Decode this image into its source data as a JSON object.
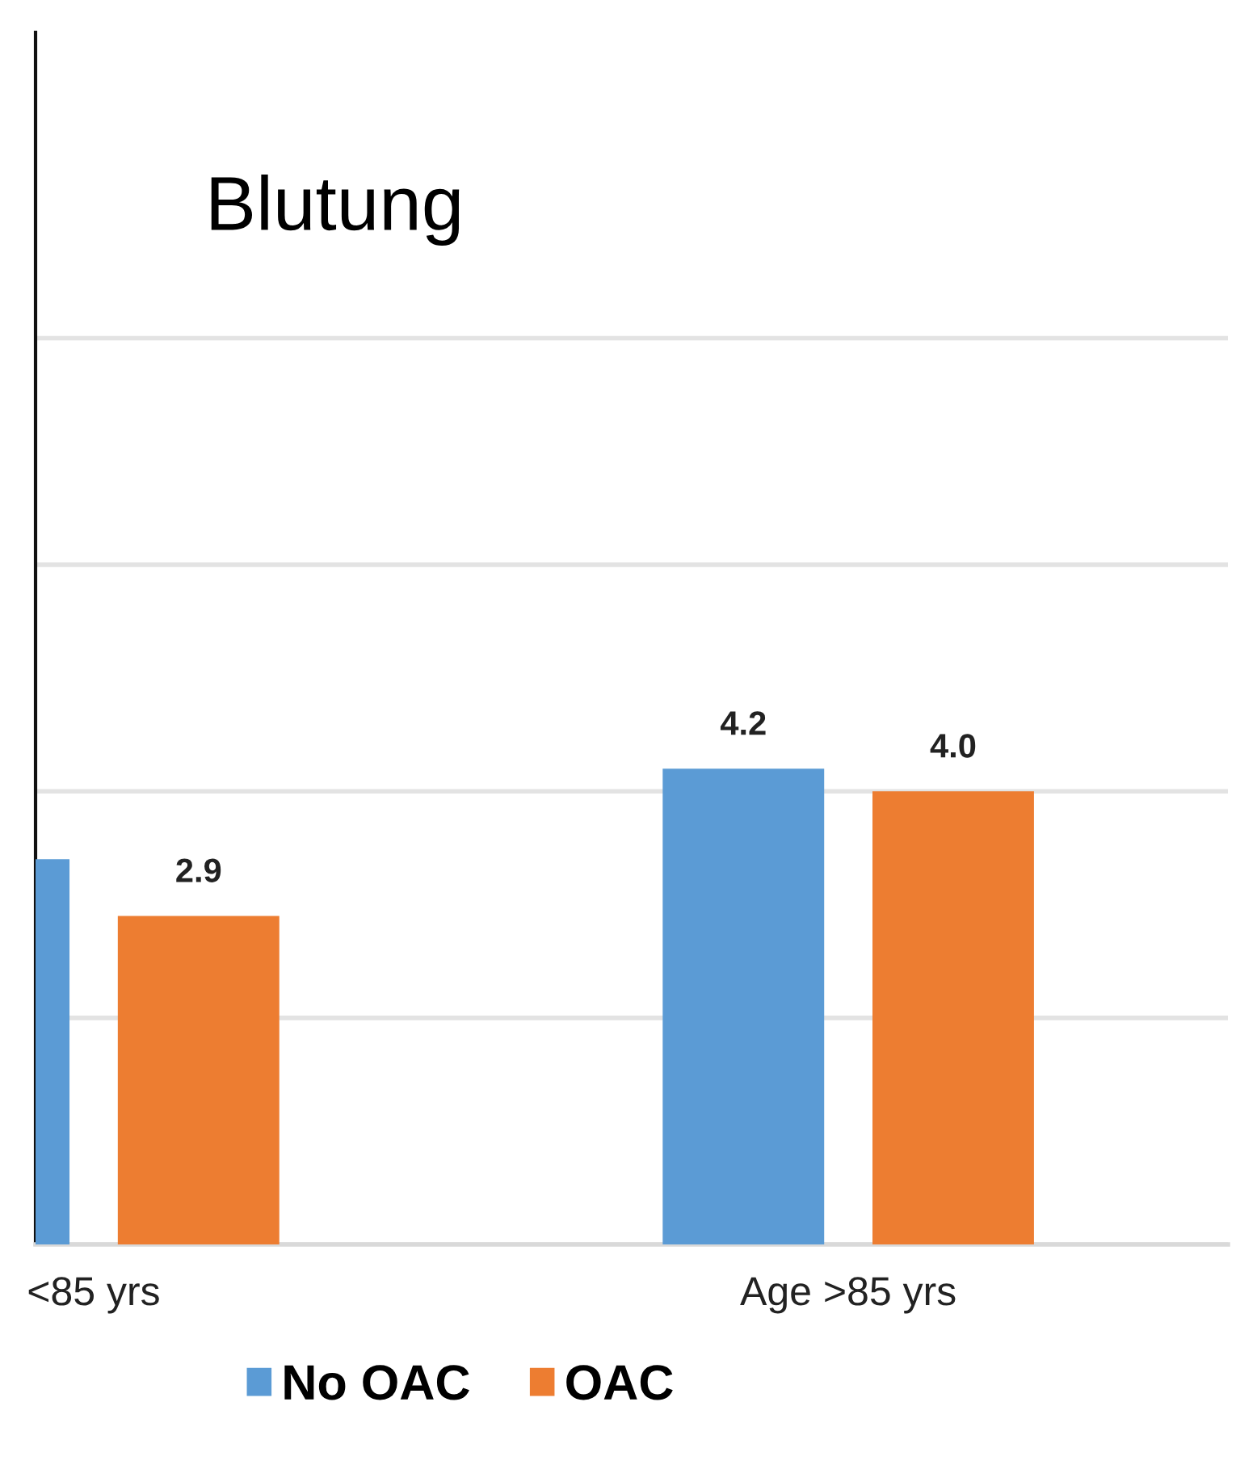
{
  "chart_data": {
    "type": "bar",
    "title": "Blutung",
    "categories": [
      "<85 yrs",
      "Age >85 yrs"
    ],
    "series": [
      {
        "name": "No OAC",
        "color": "#5b9bd5",
        "values": [
          3.4,
          4.2
        ],
        "value_labels": [
          null,
          "4.2"
        ]
      },
      {
        "name": "OAC",
        "color": "#ed7d31",
        "values": [
          2.9,
          4.0
        ],
        "value_labels": [
          "2.9",
          "4.0"
        ]
      }
    ],
    "ylim": [
      0,
      10.7
    ],
    "yticks": [
      {
        "value": 0,
        "label": null
      },
      {
        "value": 2,
        "label": null
      },
      {
        "value": 4,
        "label": null
      },
      {
        "value": 6,
        "label": null
      },
      {
        "value": 8,
        "label": null
      }
    ],
    "tick_labels": "x",
    "grid": "y",
    "legend": "bottom"
  }
}
